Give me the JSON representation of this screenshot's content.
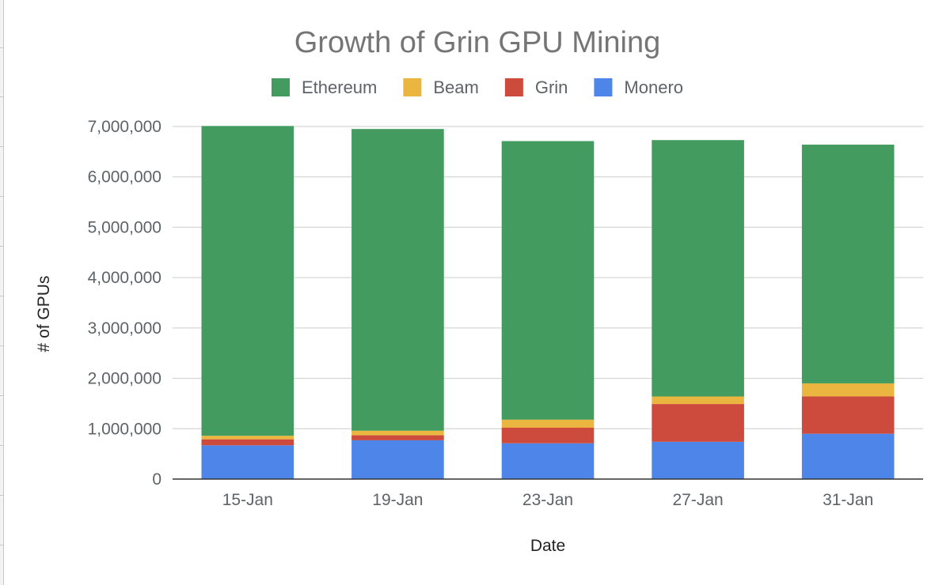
{
  "chart_data": {
    "type": "bar",
    "stacked": true,
    "title": "Growth of Grin GPU Mining",
    "xlabel": "Date",
    "ylabel": "# of GPUs",
    "ylim": [
      0,
      7000000
    ],
    "yticks": [
      0,
      1000000,
      2000000,
      3000000,
      4000000,
      5000000,
      6000000,
      7000000
    ],
    "ytick_labels": [
      "0",
      "1,000,000",
      "2,000,000",
      "3,000,000",
      "4,000,000",
      "5,000,000",
      "6,000,000",
      "7,000,000"
    ],
    "grid": true,
    "legend_position": "top",
    "categories": [
      "15-Jan",
      "19-Jan",
      "23-Jan",
      "27-Jan",
      "31-Jan"
    ],
    "stack_order": [
      "Monero",
      "Grin",
      "Beam",
      "Ethereum"
    ],
    "series": [
      {
        "name": "Ethereum",
        "color": "#439b5f",
        "values": [
          6150000,
          5990000,
          5530000,
          5090000,
          4740000
        ]
      },
      {
        "name": "Beam",
        "color": "#ebb640",
        "values": [
          70000,
          90000,
          160000,
          150000,
          260000
        ]
      },
      {
        "name": "Grin",
        "color": "#cd4b3d",
        "values": [
          120000,
          100000,
          310000,
          750000,
          740000
        ]
      },
      {
        "name": "Monero",
        "color": "#4e85e9",
        "values": [
          670000,
          770000,
          710000,
          740000,
          900000
        ]
      }
    ]
  }
}
